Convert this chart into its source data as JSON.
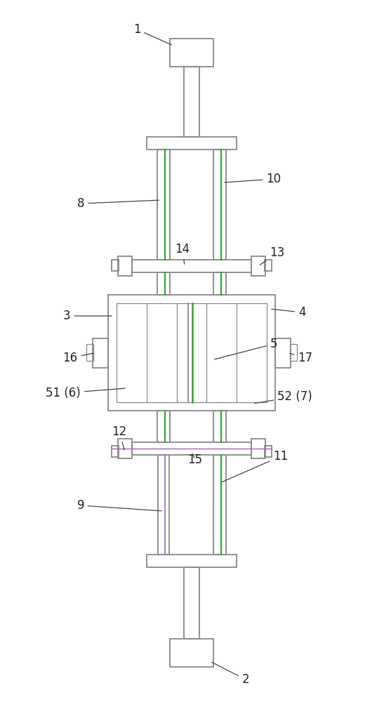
{
  "bg_color": "#ffffff",
  "line_color": "#888888",
  "line_color_dark": "#555555",
  "green_line": "#22aa22",
  "purple_line": "#9966bb",
  "figsize": [
    5.47,
    10.0
  ],
  "dpi": 100
}
